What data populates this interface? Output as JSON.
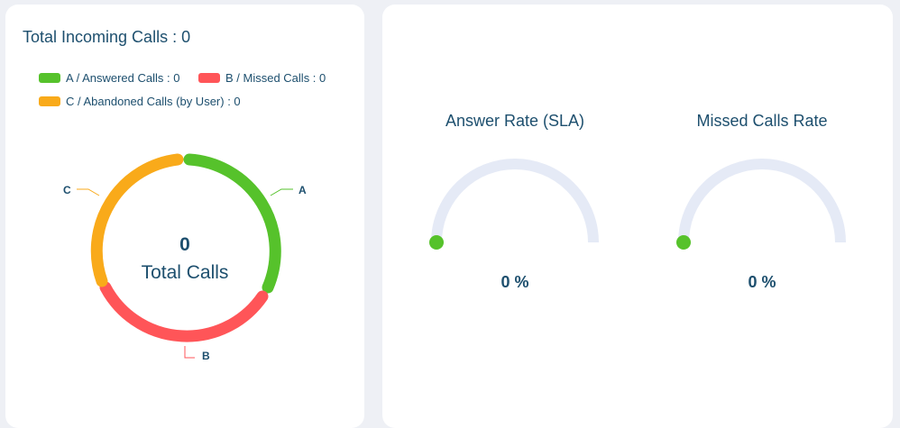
{
  "colors": {
    "answered": "#56c22b",
    "missed": "#ff5558",
    "abandoned": "#f9aa1a",
    "gauge_track": "#e5eaf6",
    "text": "#1d4f6e"
  },
  "left_card": {
    "title": "Total Incoming Calls : 0",
    "legend": [
      {
        "label": "A / Answered Calls : 0",
        "color": "#56c22b"
      },
      {
        "label": "B / Missed Calls : 0",
        "color": "#ff5558"
      },
      {
        "label": "C / Abandoned Calls (by User) : 0",
        "color": "#f9aa1a"
      }
    ],
    "donut": {
      "total_value": "0",
      "total_label": "Total Calls",
      "segment_labels": [
        "A",
        "B",
        "C"
      ]
    }
  },
  "right_card": {
    "gauges": [
      {
        "title": "Answer Rate (SLA)",
        "value_text": "0 %",
        "value": 0
      },
      {
        "title": "Missed Calls Rate",
        "value_text": "0 %",
        "value": 0
      }
    ]
  }
}
